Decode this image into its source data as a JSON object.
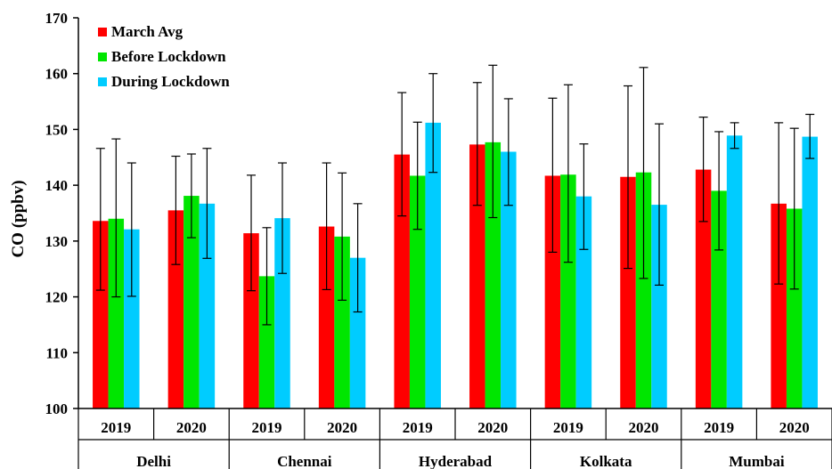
{
  "chart_data": {
    "type": "bar",
    "ylabel": "CO (ppbv)",
    "ylim": [
      100,
      170
    ],
    "yticks": [
      100,
      110,
      120,
      130,
      140,
      150,
      160,
      170
    ],
    "grid": false,
    "legend_position": "top-left",
    "cities": [
      "Delhi",
      "Chennai",
      "Hyderabad",
      "Kolkata",
      "Mumbai"
    ],
    "categories": [
      "2019",
      "2020",
      "2019",
      "2020",
      "2019",
      "2020",
      "2019",
      "2020",
      "2019",
      "2020"
    ],
    "series": [
      {
        "name": "March Avg",
        "color": "#ff0000",
        "values": [
          133.6,
          135.5,
          131.4,
          132.6,
          145.5,
          147.3,
          141.7,
          141.5,
          142.8,
          136.7
        ],
        "err_low": [
          121.2,
          125.8,
          121.1,
          121.3,
          134.5,
          136.4,
          128.0,
          125.1,
          133.5,
          122.3
        ],
        "err_high": [
          146.6,
          145.2,
          141.8,
          144.0,
          156.6,
          158.4,
          155.6,
          157.8,
          152.2,
          151.2
        ]
      },
      {
        "name": "Before Lockdown",
        "color": "#00e600",
        "values": [
          134.0,
          138.1,
          123.7,
          130.8,
          141.7,
          147.7,
          141.9,
          142.3,
          139.0,
          135.8
        ],
        "err_low": [
          120.0,
          130.6,
          115.0,
          119.4,
          132.1,
          134.2,
          126.2,
          123.3,
          128.4,
          121.4
        ],
        "err_high": [
          148.3,
          145.6,
          132.4,
          142.2,
          151.3,
          161.5,
          158.0,
          161.1,
          149.6,
          150.2
        ]
      },
      {
        "name": "During Lockdown",
        "color": "#00ccff",
        "values": [
          132.1,
          136.7,
          134.1,
          127.0,
          151.2,
          146.0,
          138.0,
          136.5,
          148.9,
          148.7
        ],
        "err_low": [
          120.1,
          126.9,
          124.2,
          117.3,
          142.3,
          136.4,
          128.5,
          122.1,
          146.6,
          144.8
        ],
        "err_high": [
          144.0,
          146.6,
          144.0,
          136.7,
          160.0,
          155.5,
          147.4,
          151.0,
          151.2,
          152.7
        ]
      }
    ]
  }
}
